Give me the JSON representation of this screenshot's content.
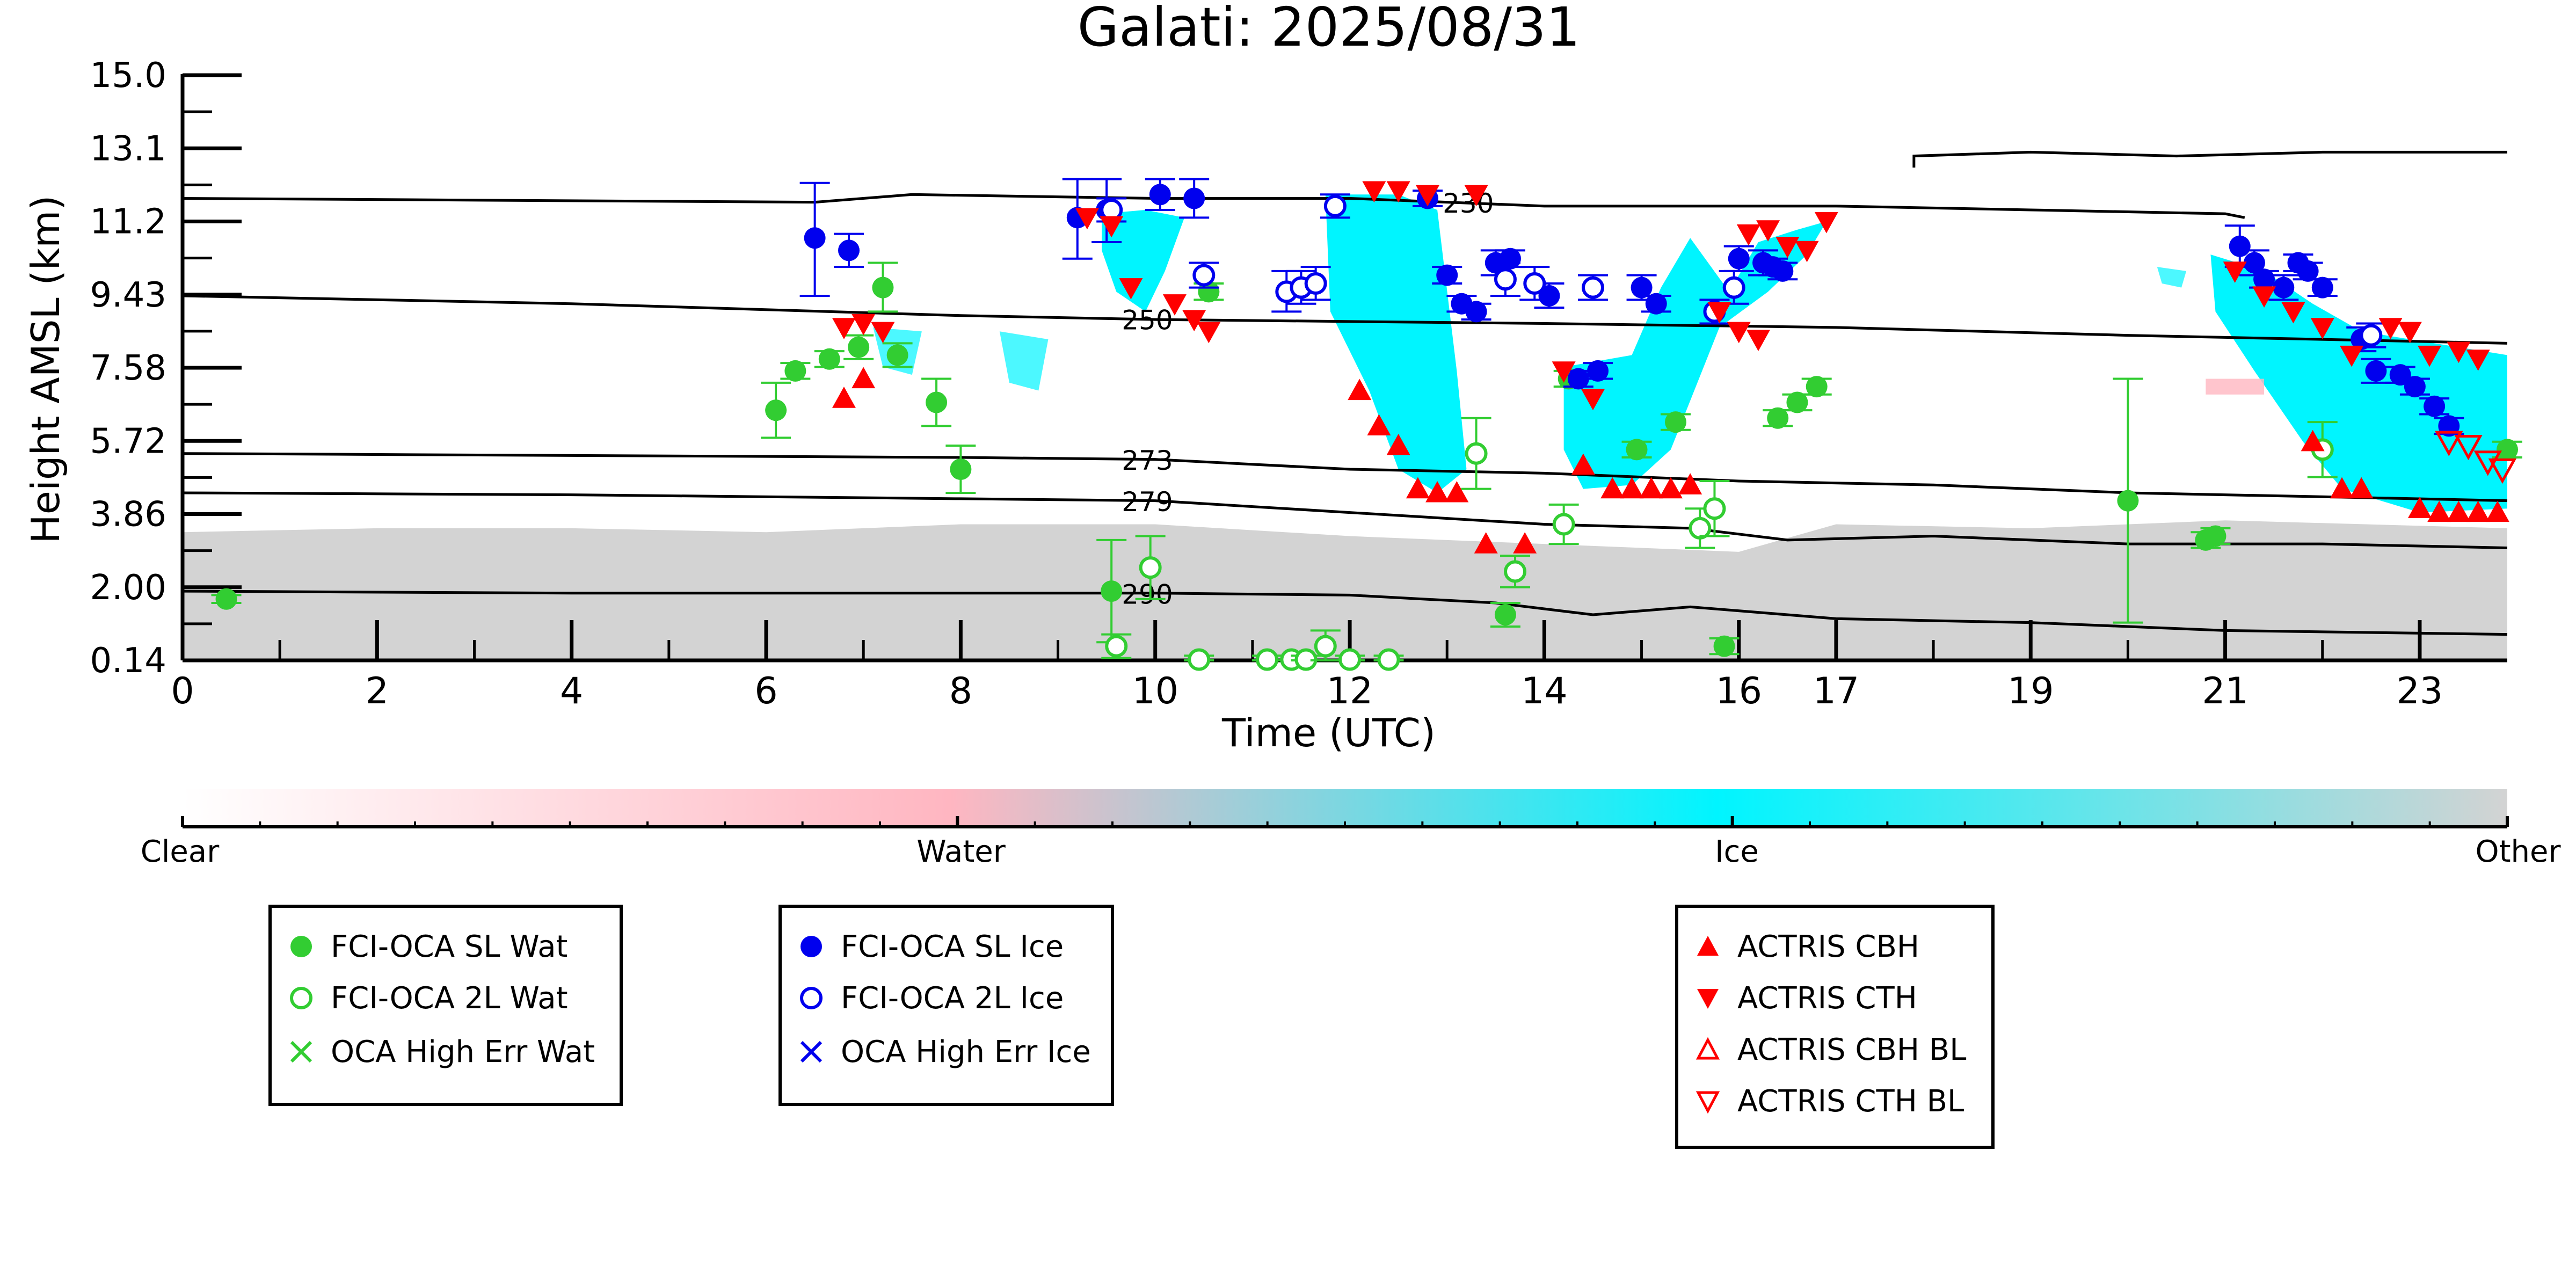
{
  "chart_data": {
    "type": "scatter",
    "title": "Galati: 2025/08/31",
    "xlabel": "Time (UTC)",
    "ylabel": "Height AMSL (km)",
    "xlim": [
      0,
      23.9
    ],
    "ylim": [
      0.14,
      15.0
    ],
    "x_ticks": [
      0,
      2,
      4,
      6,
      8,
      10,
      12,
      14,
      16,
      17,
      19,
      21,
      23
    ],
    "x_tick_labels": [
      "0",
      "2",
      "4",
      "6",
      "8",
      "10",
      "12",
      "14",
      "16",
      "17",
      "19",
      "21",
      "23"
    ],
    "y_ticks": [
      0.14,
      2.0,
      3.86,
      5.72,
      7.58,
      9.43,
      11.2,
      13.1,
      15.0
    ],
    "y_tick_labels": [
      "0.14",
      "2.00",
      "3.86",
      "5.72",
      "7.58",
      "9.43",
      "11.2",
      "13.1",
      "15.0"
    ],
    "isotherms": [
      {
        "label": "230",
        "label_x": 12.9,
        "points": [
          [
            0,
            11.8
          ],
          [
            6.5,
            11.7
          ],
          [
            7.5,
            11.9
          ],
          [
            10,
            11.8
          ],
          [
            12,
            11.8
          ],
          [
            14,
            11.6
          ],
          [
            17,
            11.6
          ],
          [
            19,
            11.5
          ],
          [
            21,
            11.4
          ],
          [
            21.2,
            11.3
          ]
        ]
      },
      {
        "label": "250",
        "label_x": 9.6,
        "points": [
          [
            0,
            9.4
          ],
          [
            4,
            9.2
          ],
          [
            8,
            8.9
          ],
          [
            10,
            8.8
          ],
          [
            14,
            8.7
          ],
          [
            17,
            8.6
          ],
          [
            20,
            8.4
          ],
          [
            23.9,
            8.2
          ]
        ]
      },
      {
        "label": "273",
        "label_x": 9.6,
        "points": [
          [
            0,
            5.4
          ],
          [
            4,
            5.35
          ],
          [
            8,
            5.3
          ],
          [
            10,
            5.25
          ],
          [
            12,
            5.0
          ],
          [
            14,
            4.9
          ],
          [
            16,
            4.7
          ],
          [
            18,
            4.6
          ],
          [
            20,
            4.4
          ],
          [
            22,
            4.3
          ],
          [
            23.9,
            4.2
          ]
        ]
      },
      {
        "label": "279",
        "label_x": 9.6,
        "points": [
          [
            0,
            4.4
          ],
          [
            4,
            4.35
          ],
          [
            8,
            4.25
          ],
          [
            10,
            4.2
          ],
          [
            12,
            3.9
          ],
          [
            14,
            3.6
          ],
          [
            15.5,
            3.5
          ],
          [
            16.5,
            3.2
          ],
          [
            18,
            3.3
          ],
          [
            20,
            3.1
          ],
          [
            22,
            3.1
          ],
          [
            23.9,
            3.0
          ]
        ]
      },
      {
        "label": "290",
        "label_x": 9.6,
        "points": [
          [
            0,
            1.9
          ],
          [
            4,
            1.85
          ],
          [
            8,
            1.85
          ],
          [
            10,
            1.85
          ],
          [
            12,
            1.8
          ],
          [
            13.5,
            1.6
          ],
          [
            14.5,
            1.3
          ],
          [
            15.5,
            1.5
          ],
          [
            17,
            1.2
          ],
          [
            19,
            1.1
          ],
          [
            21,
            0.9
          ],
          [
            23.9,
            0.8
          ]
        ]
      },
      {
        "label": "",
        "label_x": 0,
        "points": [
          [
            17.8,
            12.6
          ],
          [
            17.8,
            12.9
          ],
          [
            19,
            13.0
          ],
          [
            20.5,
            12.9
          ],
          [
            22,
            13.0
          ],
          [
            23.9,
            13.0
          ]
        ]
      }
    ],
    "colorbar": {
      "labels": [
        "Clear",
        "Water",
        "Ice",
        "Other"
      ],
      "colors": [
        "#ffffff",
        "#ffb6c1",
        "#00f5ff",
        "#d3d3d3"
      ]
    },
    "series": [
      {
        "name": "FCI-OCA SL Wat",
        "color": "#32cd32",
        "marker": "filled-circle",
        "x": [
          0.45,
          6.1,
          6.3,
          6.65,
          6.95,
          7.2,
          7.35,
          7.75,
          8.0,
          9.55,
          10.55,
          13.6,
          14.25,
          14.95,
          15.35,
          15.85,
          16.4,
          16.6,
          16.8,
          20.0,
          20.8,
          20.9,
          23.9
        ],
        "y": [
          1.7,
          6.5,
          7.5,
          7.8,
          8.1,
          9.6,
          7.9,
          6.7,
          5.0,
          1.9,
          9.5,
          1.3,
          7.3,
          5.5,
          6.2,
          0.5,
          6.3,
          6.7,
          7.1,
          4.2,
          3.2,
          3.3,
          5.5
        ],
        "err": [
          0.1,
          0.7,
          0.2,
          0.2,
          0.3,
          0.6,
          0.3,
          0.6,
          0.6,
          1.3,
          0.2,
          0.3,
          0.2,
          0.2,
          0.2,
          0.2,
          0.2,
          0.2,
          0.2,
          3.1,
          0.2,
          0.2,
          0.2
        ]
      },
      {
        "name": "FCI-OCA 2L Wat",
        "color": "#32cd32",
        "marker": "open-circle",
        "x": [
          9.6,
          9.95,
          10.45,
          11.15,
          11.4,
          11.55,
          11.75,
          12.0,
          12.4,
          13.3,
          13.7,
          14.2,
          15.6,
          15.75,
          22.0
        ],
        "y": [
          0.5,
          2.5,
          0.16,
          0.16,
          0.16,
          0.16,
          0.5,
          0.16,
          0.16,
          5.4,
          2.4,
          3.6,
          3.5,
          4.0,
          5.5
        ],
        "err": [
          0.3,
          0.8,
          0.1,
          0.1,
          0.1,
          0.1,
          0.4,
          0.1,
          0.1,
          0.9,
          0.4,
          0.5,
          0.5,
          0.7,
          0.7
        ]
      },
      {
        "name": "OCA High Err Wat",
        "color": "#32cd32",
        "marker": "x",
        "x": [],
        "y": []
      },
      {
        "name": "FCI-OCA SL Ice",
        "color": "#0000ee",
        "marker": "filled-circle",
        "x": [
          6.5,
          6.85,
          9.2,
          9.5,
          10.05,
          10.4,
          12.8,
          13.0,
          13.15,
          13.3,
          13.5,
          13.65,
          14.05,
          14.35,
          14.55,
          15.0,
          15.15,
          16.0,
          16.25,
          16.35,
          16.45,
          21.15,
          21.3,
          21.4,
          21.6,
          21.75,
          21.85,
          22.0,
          22.4,
          22.55,
          22.8,
          22.95,
          23.15,
          23.3
        ],
        "y": [
          10.8,
          10.5,
          11.3,
          11.5,
          11.9,
          11.8,
          11.8,
          9.9,
          9.2,
          9.0,
          10.2,
          10.3,
          9.4,
          7.3,
          7.5,
          9.6,
          9.2,
          10.3,
          10.2,
          10.1,
          10.0,
          10.6,
          10.2,
          9.8,
          9.6,
          10.2,
          10.0,
          9.6,
          8.3,
          7.5,
          7.4,
          7.1,
          6.6,
          6.1
        ],
        "err": [
          1.4,
          0.4,
          1.0,
          0.8,
          0.4,
          0.5,
          0.2,
          0.2,
          0.2,
          0.2,
          0.3,
          0.2,
          0.3,
          0.2,
          0.2,
          0.3,
          0.2,
          0.3,
          0.3,
          0.2,
          0.2,
          0.5,
          0.3,
          0.2,
          0.3,
          0.2,
          0.2,
          0.2,
          0.3,
          0.3,
          0.2,
          0.2,
          0.2,
          0.2
        ]
      },
      {
        "name": "FCI-OCA 2L Ice",
        "color": "#0000ee",
        "marker": "open-circle",
        "x": [
          9.55,
          10.5,
          11.35,
          11.5,
          11.65,
          11.85,
          13.6,
          13.9,
          14.5,
          15.75,
          15.95,
          22.5
        ],
        "y": [
          11.5,
          9.9,
          9.5,
          9.6,
          9.7,
          11.6,
          9.8,
          9.7,
          9.6,
          9.0,
          9.6,
          8.4
        ],
        "err": [
          0.3,
          0.3,
          0.5,
          0.4,
          0.4,
          0.3,
          0.4,
          0.4,
          0.3,
          0.3,
          0.4,
          0.3
        ]
      },
      {
        "name": "OCA High Err Ice",
        "color": "#0000ee",
        "marker": "x",
        "x": [],
        "y": []
      },
      {
        "name": "ACTRIS CBH",
        "color": "#ff0000",
        "marker": "up-triangle",
        "x": [
          6.8,
          7.0,
          12.1,
          12.3,
          12.5,
          12.7,
          12.9,
          13.1,
          13.4,
          13.8,
          14.4,
          14.7,
          14.9,
          15.1,
          15.3,
          15.5,
          21.9,
          22.2,
          22.4
        ],
        "y": [
          6.8,
          7.3,
          7.0,
          6.1,
          5.6,
          4.5,
          4.4,
          4.4,
          3.1,
          3.1,
          5.1,
          4.5,
          4.5,
          4.5,
          4.5,
          4.6,
          5.7,
          4.5,
          4.5
        ],
        "x2": [
          23.0,
          23.2,
          23.4,
          23.6,
          23.8
        ],
        "y2": [
          4.0,
          3.9,
          3.9,
          3.9,
          3.9
        ]
      },
      {
        "name": "ACTRIS CTH",
        "color": "#ff0000",
        "marker": "down-triangle",
        "x": [
          6.8,
          7.0,
          7.2,
          9.3,
          9.55,
          9.75,
          10.2,
          10.4,
          10.55,
          12.25,
          12.5,
          12.8,
          13.3,
          14.2,
          14.5,
          16.1,
          16.3,
          16.5,
          16.7,
          16.9,
          21.1,
          21.4,
          21.7,
          22.0,
          22.3,
          22.7,
          22.9,
          23.1,
          23.4,
          23.6
        ],
        "y": [
          8.6,
          8.7,
          8.5,
          11.3,
          11.1,
          9.6,
          9.2,
          8.8,
          8.5,
          12.0,
          12.0,
          11.9,
          11.9,
          7.5,
          6.8,
          10.9,
          11.0,
          10.6,
          10.5,
          11.2,
          10.0,
          9.4,
          9.0,
          8.6,
          7.9,
          8.6,
          8.5,
          7.9,
          8.0,
          7.8
        ],
        "x2": [
          15.8,
          16.0,
          16.2
        ],
        "y2": [
          9.0,
          8.5,
          8.3
        ]
      },
      {
        "name": "ACTRIS CBH BL",
        "color": "#ff0000",
        "marker": "open-up-triangle",
        "x": [],
        "y": []
      },
      {
        "name": "ACTRIS CTH BL",
        "color": "#ff0000",
        "marker": "open-down-triangle",
        "x": [
          23.3,
          23.5,
          23.7,
          23.85
        ],
        "y": [
          5.7,
          5.6,
          5.2,
          5.0
        ]
      }
    ],
    "legends": [
      [
        "FCI-OCA SL Wat",
        "FCI-OCA 2L Wat",
        "OCA High Err Wat"
      ],
      [
        "FCI-OCA SL Ice",
        "FCI-OCA 2L Ice",
        "OCA High Err Ice"
      ],
      [
        "ACTRIS CBH",
        "ACTRIS CTH",
        "ACTRIS CBH BL",
        "ACTRIS CTH BL"
      ]
    ]
  }
}
